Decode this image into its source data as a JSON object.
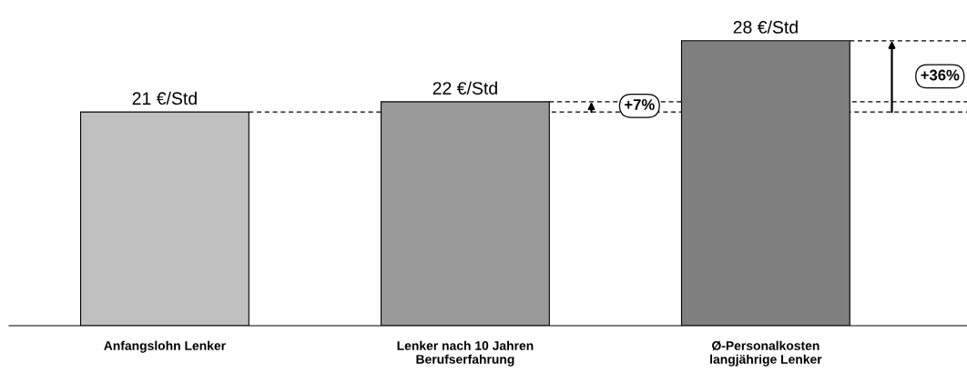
{
  "chart_data": {
    "type": "bar",
    "categories": [
      "Anfangslohn Lenker",
      "Lenker nach 10 Jahren\nBerufserfahrung",
      "Ø-Personalkosten\nlangjährige Lenker"
    ],
    "values": [
      21,
      22,
      28
    ],
    "colors": [
      "#c0c0c0",
      "#9a9a9a",
      "#7f7f7f"
    ],
    "value_labels": [
      "21 €/Std",
      "22 €/Std",
      "28 €/Std"
    ],
    "ref_lines": [
      {
        "axis": "y",
        "value": 21,
        "line_style": "dashed",
        "color": "#000000"
      },
      {
        "axis": "y",
        "value": 22,
        "line_style": "dashed",
        "color": "#000000"
      },
      {
        "axis": "y",
        "value": 28,
        "line_style": "dashed",
        "color": "#000000"
      }
    ],
    "annotations": [
      "+7%",
      "+36%"
    ],
    "grid": false,
    "legend": false
  }
}
